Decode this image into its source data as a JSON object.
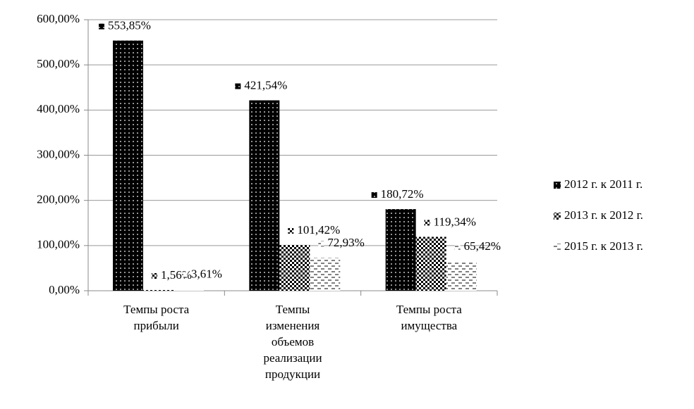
{
  "chart_data": {
    "type": "bar",
    "categories": [
      "Темпы роста прибыли",
      "Темпы изменения объемов реализации продукции",
      "Темпы роста имущества"
    ],
    "series": [
      {
        "name": "2012 г. к 2011 г.",
        "color": "#000000",
        "values": [
          553.85,
          421.54,
          180.72
        ],
        "value_labels": [
          "553,85%",
          "421,54%",
          "180,72%"
        ]
      },
      {
        "name": "2013 г. к 2012 г.",
        "color": "#000000",
        "values": [
          1.56,
          101.42,
          119.34
        ],
        "value_labels": [
          "1,56%",
          "101,42%",
          "119,34%"
        ]
      },
      {
        "name": "2015 г. к 2013 г.",
        "color": "#000000",
        "values": [
          3.61,
          72.93,
          65.42
        ],
        "value_labels": [
          "3,61%",
          "72,93%",
          "65,42%"
        ]
      }
    ],
    "ylim": [
      0,
      600
    ],
    "yticks": [
      {
        "value": 0,
        "label": "0,00%"
      },
      {
        "value": 100,
        "label": "100,00%"
      },
      {
        "value": 200,
        "label": "200,00%"
      },
      {
        "value": 300,
        "label": "300,00%"
      },
      {
        "value": 400,
        "label": "400,00%"
      },
      {
        "value": 500,
        "label": "500,00%"
      },
      {
        "value": 600,
        "label": "600,00%"
      }
    ],
    "grid": true,
    "legend": "right"
  }
}
